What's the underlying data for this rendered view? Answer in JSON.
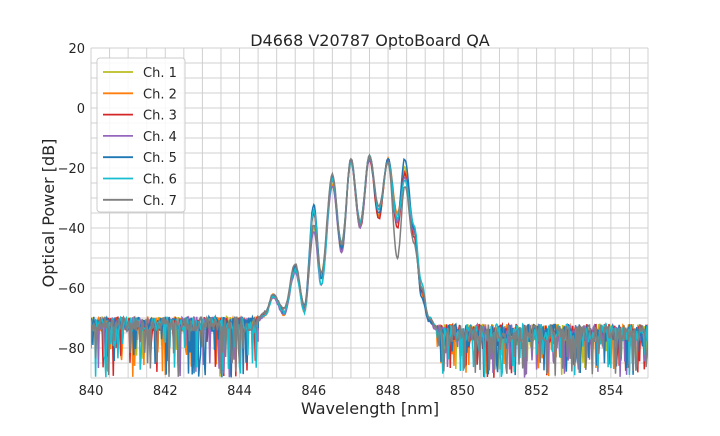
{
  "chart_data": {
    "type": "line",
    "title": "D4668 V20787 OptoBoard QA",
    "xlabel": "Wavelength [nm]",
    "ylabel": "Optical Power [dB]",
    "xlim": [
      840,
      855
    ],
    "ylim": [
      -90,
      20
    ],
    "xticks": [
      840,
      842,
      844,
      846,
      848,
      850,
      852,
      854
    ],
    "yticks": [
      20,
      0,
      -20,
      -40,
      -60,
      -80
    ],
    "xtick_labels": [
      "840",
      "842",
      "844",
      "846",
      "848",
      "850",
      "852",
      "854"
    ],
    "ytick_labels": [
      "20",
      "0",
      "−20",
      "−40",
      "−60",
      "−80"
    ],
    "grid": true,
    "minor_grid": {
      "x_step_nm": 0.5,
      "y_step_db": 5
    },
    "legend_position": "top-left",
    "noise_floor_db": {
      "left": -72,
      "right": -75,
      "min": -90
    },
    "x_nm": [
      844.5,
      844.7,
      844.9,
      845.2,
      845.5,
      845.75,
      846.0,
      846.2,
      846.5,
      846.75,
      847.0,
      847.25,
      847.5,
      847.75,
      848.0,
      848.25,
      848.45,
      848.7,
      848.9,
      849.1,
      849.3
    ],
    "series": [
      {
        "name": "Ch. 1",
        "color": "#bcbd22",
        "y": [
          -70,
          -68,
          -63,
          -68,
          -54,
          -66,
          -40,
          -56,
          -25,
          -48,
          -18,
          -40,
          -16,
          -36,
          -18,
          -38,
          -20,
          -40,
          -60,
          -70,
          -73
        ]
      },
      {
        "name": "Ch. 2",
        "color": "#ff7f0e",
        "y": [
          -70,
          -69,
          -62,
          -69,
          -52,
          -68,
          -35,
          -55,
          -26,
          -45,
          -18,
          -38,
          -16,
          -36,
          -17,
          -35,
          -21,
          -42,
          -62,
          -71,
          -73
        ]
      },
      {
        "name": "Ch. 3",
        "color": "#d62728",
        "y": [
          -70,
          -68,
          -63,
          -67,
          -54,
          -66,
          -35,
          -57,
          -24,
          -46,
          -18,
          -40,
          -17,
          -37,
          -17,
          -40,
          -22,
          -43,
          -61,
          -70,
          -73
        ]
      },
      {
        "name": "Ch. 4",
        "color": "#9467bd",
        "y": [
          -71,
          -69,
          -63,
          -69,
          -55,
          -67,
          -41,
          -59,
          -26,
          -48,
          -18,
          -40,
          -17,
          -34,
          -18,
          -38,
          -23,
          -41,
          -60,
          -71,
          -74
        ]
      },
      {
        "name": "Ch. 5",
        "color": "#1f77b4",
        "y": [
          -70,
          -68,
          -62,
          -68,
          -53,
          -66,
          -32,
          -57,
          -23,
          -47,
          -17,
          -38,
          -16,
          -35,
          -17,
          -37,
          -17,
          -40,
          -63,
          -71,
          -73
        ]
      },
      {
        "name": "Ch. 6",
        "color": "#17becf",
        "y": [
          -70,
          -69,
          -63,
          -68,
          -54,
          -68,
          -34,
          -59,
          -24,
          -45,
          -18,
          -38,
          -16,
          -34,
          -18,
          -37,
          -24,
          -39,
          -58,
          -70,
          -73
        ]
      },
      {
        "name": "Ch. 7",
        "color": "#7f7f7f",
        "y": [
          -70,
          -68,
          -62,
          -67,
          -52,
          -66,
          -39,
          -55,
          -22,
          -46,
          -17,
          -39,
          -16,
          -33,
          -18,
          -50,
          -26,
          -45,
          -60,
          -70,
          -73
        ]
      }
    ]
  }
}
